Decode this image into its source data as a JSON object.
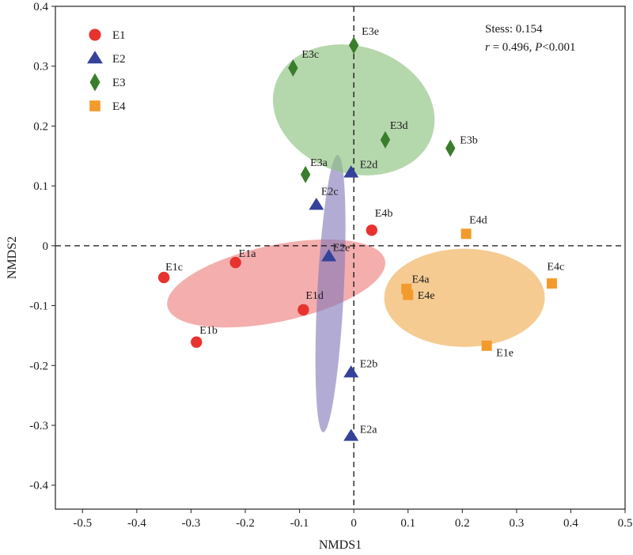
{
  "chart_data": {
    "type": "scatter",
    "xlabel": "NMDS1",
    "ylabel": "NMDS2",
    "xlim": [
      -0.55,
      0.5
    ],
    "ylim": [
      -0.44,
      0.4
    ],
    "x_ticks": [
      "-0.5",
      "-0.4",
      "-0.3",
      "-0.2",
      "-0.1",
      "0",
      "0.1",
      "0.2",
      "0.3",
      "0.4",
      "0.5"
    ],
    "x_tick_values": [
      -0.5,
      -0.4,
      -0.3,
      -0.2,
      -0.1,
      0,
      0.1,
      0.2,
      0.3,
      0.4,
      0.5
    ],
    "y_ticks": [
      "-0.4",
      "-0.3",
      "-0.2",
      "-0.1",
      "0",
      "0.1",
      "0.2",
      "0.3",
      "0.4"
    ],
    "y_tick_values": [
      -0.4,
      -0.3,
      -0.2,
      -0.1,
      0,
      0.1,
      0.2,
      0.3,
      0.4
    ],
    "grid": false,
    "reference_lines": {
      "x": 0,
      "y": 0,
      "style": "dashed"
    },
    "legend": {
      "placement": "top-left"
    },
    "annotation": {
      "stress": "Stess: 0.154",
      "r_var": "r",
      "r_rest": " = 0.496, ",
      "p_var": "P",
      "p_rest": "<0.001"
    },
    "series": [
      {
        "name": "E1",
        "marker": "circle",
        "color": "#e8322e",
        "points": [
          {
            "label": "E1a",
            "x": -0.218,
            "y": -0.028
          },
          {
            "label": "E1b",
            "x": -0.29,
            "y": -0.161
          },
          {
            "label": "E1c",
            "x": -0.35,
            "y": -0.053
          },
          {
            "label": "E1d",
            "x": -0.093,
            "y": -0.107
          },
          {
            "label": "E4b",
            "x": 0.033,
            "y": 0.026
          }
        ]
      },
      {
        "name": "E2",
        "marker": "triangle",
        "color": "#34429a",
        "points": [
          {
            "label": "E2a",
            "x": -0.005,
            "y": -0.318
          },
          {
            "label": "E2b",
            "x": -0.005,
            "y": -0.212
          },
          {
            "label": "E2c",
            "x": -0.069,
            "y": 0.068
          },
          {
            "label": "E2d",
            "x": -0.005,
            "y": 0.122
          },
          {
            "label": "E2e",
            "x": -0.046,
            "y": -0.018
          }
        ]
      },
      {
        "name": "E3",
        "marker": "diamond",
        "color": "#3a7d2c",
        "points": [
          {
            "label": "E3a",
            "x": -0.089,
            "y": 0.119
          },
          {
            "label": "E3b",
            "x": 0.178,
            "y": 0.163
          },
          {
            "label": "E3c",
            "x": -0.112,
            "y": 0.297
          },
          {
            "label": "E3d",
            "x": 0.058,
            "y": 0.177
          },
          {
            "label": "E3e",
            "x": 0.0,
            "y": 0.335
          }
        ]
      },
      {
        "name": "E4",
        "marker": "square",
        "color": "#f39a2c",
        "points": [
          {
            "label": "E4a",
            "x": 0.097,
            "y": -0.072
          },
          {
            "label": "E4c",
            "x": 0.365,
            "y": -0.063
          },
          {
            "label": "E4d",
            "x": 0.207,
            "y": 0.02
          },
          {
            "label": "E4e",
            "x": 0.1,
            "y": -0.082
          },
          {
            "label": "E1e",
            "x": 0.245,
            "y": -0.167
          }
        ]
      }
    ],
    "ellipses": [
      {
        "group": "E1",
        "color": "#f08b8b",
        "opacity": 0.7,
        "center": [
          -0.143,
          -0.063
        ],
        "radii": [
          0.205,
          0.064
        ],
        "tilt_deg": 12
      },
      {
        "group": "E2",
        "color": "#7f75b8",
        "opacity": 0.6,
        "center": [
          -0.043,
          -0.08
        ],
        "radii": [
          0.256,
          0.022
        ],
        "tilt_deg": 87
      },
      {
        "group": "E3",
        "color": "#8dc27f",
        "opacity": 0.65,
        "center": [
          0.0,
          0.227
        ],
        "radii": [
          0.152,
          0.106
        ],
        "tilt_deg": -18
      },
      {
        "group": "E4",
        "color": "#f1b564",
        "opacity": 0.7,
        "center": [
          0.204,
          -0.087
        ],
        "radii": [
          0.148,
          0.082
        ],
        "tilt_deg": 0
      }
    ]
  }
}
